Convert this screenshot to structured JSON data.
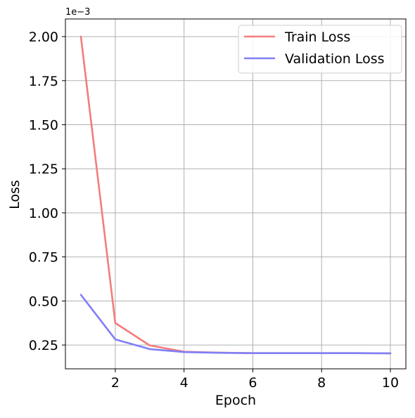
{
  "chart_data": {
    "type": "line",
    "title": "",
    "xlabel": "Epoch",
    "ylabel": "Loss",
    "y_offset_label": "1e−3",
    "xlim": [
      0.55,
      10.45
    ],
    "ylim": [
      0.115,
      2.1
    ],
    "x_ticks": [
      2,
      4,
      6,
      8,
      10
    ],
    "y_ticks": [
      0.25,
      0.5,
      0.75,
      1.0,
      1.25,
      1.5,
      1.75,
      2.0
    ],
    "y_tick_labels": [
      "0.25",
      "0.50",
      "0.75",
      "1.00",
      "1.25",
      "1.50",
      "1.75",
      "2.00"
    ],
    "grid": true,
    "legend_position": "top-right",
    "x": [
      1,
      2,
      3,
      4,
      5,
      6,
      7,
      8,
      9,
      10
    ],
    "series": [
      {
        "name": "Train Loss",
        "color": "#f47c7c",
        "values": [
          2.0,
          0.375,
          0.248,
          0.212,
          0.207,
          0.204,
          0.204,
          0.204,
          0.204,
          0.203
        ]
      },
      {
        "name": "Validation Loss",
        "color": "#7f7ff7",
        "values": [
          0.535,
          0.282,
          0.227,
          0.21,
          0.206,
          0.204,
          0.204,
          0.204,
          0.204,
          0.203
        ]
      }
    ]
  }
}
